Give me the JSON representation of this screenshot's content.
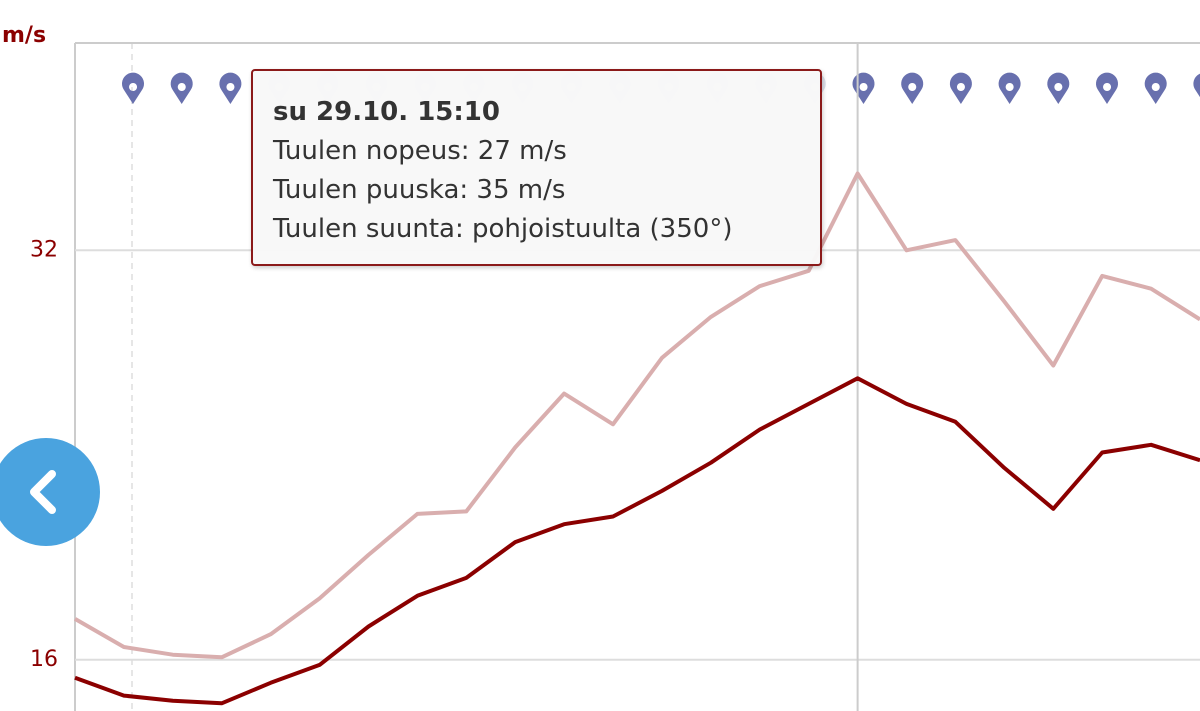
{
  "chart_data": {
    "type": "line",
    "y_axis_label": "m/s",
    "categories": [
      null,
      null,
      null,
      null,
      null,
      null,
      null,
      null,
      null,
      null,
      null,
      null,
      null,
      null,
      null,
      null,
      null,
      null,
      null,
      null,
      null,
      null,
      null,
      null
    ],
    "series": [
      {
        "name": "Tuulen puuska",
        "color": "#d9aeae",
        "values": [
          17.6,
          16.5,
          16.2,
          16.1,
          17.0,
          18.4,
          20.1,
          21.7,
          21.8,
          24.3,
          26.4,
          25.2,
          27.8,
          29.4,
          30.6,
          31.2,
          35,
          32.0,
          32.4,
          30.0,
          27.5,
          31.0,
          30.5,
          29.3
        ]
      },
      {
        "name": "Tuulen nopeus",
        "color": "#8b0000",
        "values": [
          15.3,
          14.6,
          14.4,
          14.3,
          15.1,
          15.8,
          17.3,
          18.5,
          19.2,
          20.6,
          21.3,
          21.6,
          22.6,
          23.7,
          25.0,
          26.0,
          27,
          26.0,
          25.3,
          23.5,
          21.9,
          24.1,
          24.4,
          23.8
        ]
      }
    ],
    "ylim": [
      14,
      40.1
    ],
    "yticks": [
      16,
      32
    ],
    "grid": true,
    "tooltip": {
      "title": "su 29.10. 15:10",
      "lines": [
        "Tuulen nopeus: 27 m/s",
        "Tuulen puuska: 35 m/s",
        "Tuulen suunta: pohjoistuulta (350°)"
      ]
    }
  }
}
